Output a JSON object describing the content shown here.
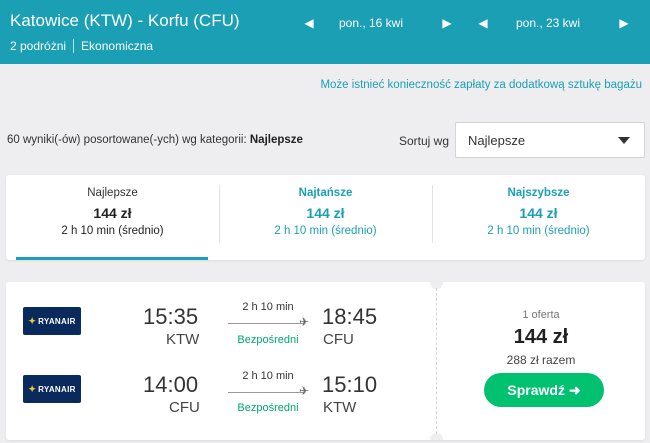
{
  "header": {
    "title": "Katowice (KTW) - Korfu (CFU)",
    "travelers": "2 podróżni",
    "cabin": "Ekonomiczna",
    "departure_date": "pon., 16 kwi",
    "return_date": "pon., 23 kwi",
    "background_color": "#1a9fb4"
  },
  "baggage_notice": "Może istnieć konieczność zapłaty za dodatkową sztukę bagażu",
  "results": {
    "count_text": "60 wyniki(-ów) posortowane(-ych) wg kategorii:",
    "category": "Najlepsze"
  },
  "sort": {
    "label": "Sortuj wg",
    "selected": "Najlepsze"
  },
  "tabs": [
    {
      "name": "Najlepsze",
      "price": "144 zł",
      "time": "2 h 10 min (średnio)",
      "active": true
    },
    {
      "name": "Najtańsze",
      "price": "144 zł",
      "time": "2 h 10 min (średnio)",
      "active": false
    },
    {
      "name": "Najszybsze",
      "price": "144 zł",
      "time": "2 h 10 min (średnio)",
      "active": false
    }
  ],
  "flight": {
    "legs": [
      {
        "airline": "RYANAIR",
        "depart_time": "15:35",
        "depart_code": "KTW",
        "duration": "2 h 10 min",
        "stops": "Bezpośredni",
        "arrive_time": "18:45",
        "arrive_code": "CFU"
      },
      {
        "airline": "RYANAIR",
        "depart_time": "14:00",
        "depart_code": "CFU",
        "duration": "2 h 10 min",
        "stops": "Bezpośredni",
        "arrive_time": "15:10",
        "arrive_code": "KTW"
      }
    ],
    "offers": "1 oferta",
    "price": "144 zł",
    "total": "288 zł razem",
    "button": "Sprawdź ➜"
  },
  "colors": {
    "accent": "#1a9fb4",
    "cta": "#00c170",
    "direct": "#00a870"
  }
}
